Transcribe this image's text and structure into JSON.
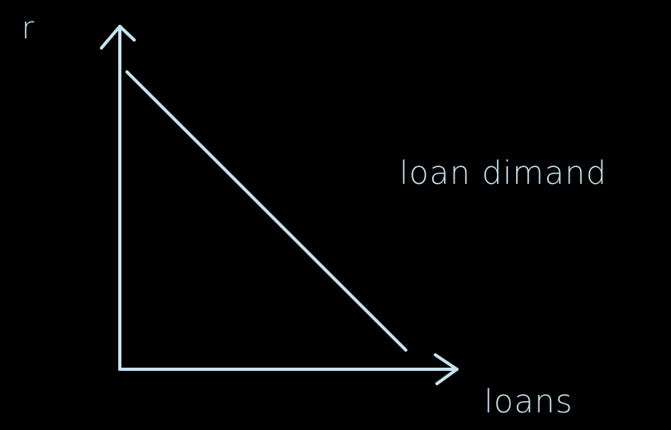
{
  "diagram": {
    "y_axis_label": "r",
    "x_axis_label": "loans",
    "curve_label": "loan dimand",
    "stroke_color": "#c7e3ef",
    "background_color": "#000000"
  }
}
